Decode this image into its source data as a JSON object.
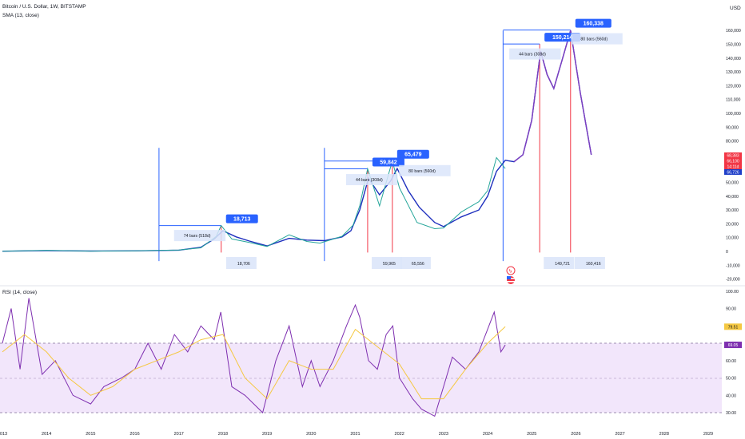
{
  "header": {
    "symbol_line": "Bitcoin / U.S. Dollar, 1W, BITSTAMP",
    "sma_legend": "SMA (13, close)",
    "currency": "USD"
  },
  "rsi_panel": {
    "legend": "RSI (14, close)"
  },
  "price_badges": [
    {
      "label": "68,383",
      "color": "#f23645"
    },
    {
      "label": "66,100",
      "color": "#f23645"
    },
    {
      "label": "14:11d",
      "color": "#f23645"
    },
    {
      "label": "66,726",
      "color": "#1e3ec8"
    }
  ],
  "rsi_badges": [
    {
      "label": "79.51",
      "color": "#f5c842"
    },
    {
      "label": "69.05",
      "color": "#7e2fb0"
    }
  ],
  "annotations": {
    "peak_labels": [
      {
        "label": "18,713",
        "x": 2017.96,
        "y": 18713
      },
      {
        "label": "59,842",
        "x": 2021.28,
        "y": 59842
      },
      {
        "label": "65,479",
        "x": 2021.84,
        "y": 65479
      },
      {
        "label": "150,214",
        "x": 2025.18,
        "y": 150214
      },
      {
        "label": "160,338",
        "x": 2025.88,
        "y": 160338
      }
    ],
    "bar_counts": [
      {
        "label": "74 bars (518d)",
        "x": 2017.0,
        "y": 11500
      },
      {
        "label": "44 bars (308d)",
        "x": 2020.9,
        "y": 52000
      },
      {
        "label": "80 bars (560d)",
        "x": 2022.1,
        "y": 58500
      },
      {
        "label": "44 bars (308d)",
        "x": 2024.6,
        "y": 143000
      },
      {
        "label": "80 bars (560d)",
        "x": 2026.0,
        "y": 154000
      }
    ],
    "price_marks": [
      {
        "label": "18,706",
        "x": 2018.0
      },
      {
        "label": "59,965",
        "x": 2021.3
      },
      {
        "label": "65,556",
        "x": 2021.95
      },
      {
        "label": "149,721",
        "x": 2025.2
      },
      {
        "label": "160,416",
        "x": 2025.9
      }
    ]
  },
  "chart_data": [
    {
      "type": "line",
      "title": "Bitcoin / U.S. Dollar, 1W, BITSTAMP",
      "ylabel": "USD",
      "xlim": [
        2013.0,
        2029.2
      ],
      "ylim": [
        -20000,
        170000
      ],
      "x_ticks": [
        "2013",
        "2014",
        "2015",
        "2016",
        "2017",
        "2018",
        "2019",
        "2020",
        "2021",
        "2022",
        "2023",
        "2024",
        "2025",
        "2026",
        "2027",
        "2028",
        "2029"
      ],
      "y_ticks": [
        "-20,000",
        "-10,000",
        "0",
        "10,000",
        "20,000",
        "30,000",
        "40,000",
        "50,000",
        "60,000",
        "70,000",
        "80,000",
        "90,000",
        "100,000",
        "110,000",
        "120,000",
        "130,000",
        "140,000",
        "150,000",
        "160,000"
      ],
      "grid": false,
      "series": [
        {
          "name": "SMA (13, close)",
          "color": "#1e2fbe",
          "x": [
            2013.0,
            2014.0,
            2015.0,
            2016.0,
            2017.0,
            2017.5,
            2017.8,
            2018.0,
            2018.3,
            2018.6,
            2019.0,
            2019.5,
            2019.9,
            2020.3,
            2020.7,
            2020.9,
            2021.1,
            2021.3,
            2021.55,
            2021.8,
            2021.95,
            2022.2,
            2022.45,
            2022.8,
            2023.0,
            2023.4,
            2023.8,
            2024.0,
            2024.2,
            2024.4,
            2024.6,
            2024.8,
            2025.0,
            2025.2,
            2025.35,
            2025.5,
            2025.7,
            2025.88,
            2026.1,
            2026.35
          ],
          "y": [
            200,
            500,
            300,
            400,
            900,
            3000,
            9000,
            15000,
            10500,
            7500,
            4000,
            9500,
            8200,
            7800,
            10500,
            15000,
            30000,
            53000,
            41000,
            51000,
            60000,
            44000,
            32000,
            21000,
            18000,
            25000,
            30000,
            40000,
            58000,
            66000,
            65000,
            70000,
            95000,
            145000,
            128000,
            118000,
            140000,
            160000,
            115000,
            70000
          ]
        },
        {
          "name": "Price",
          "color": "#26a69a",
          "x": [
            2013.0,
            2014.0,
            2015.0,
            2016.0,
            2017.0,
            2017.5,
            2017.85,
            2017.96,
            2018.2,
            2018.6,
            2019.0,
            2019.5,
            2019.9,
            2020.2,
            2020.7,
            2020.95,
            2021.1,
            2021.28,
            2021.55,
            2021.84,
            2022.0,
            2022.4,
            2022.8,
            2023.0,
            2023.4,
            2023.8,
            2024.0,
            2024.2,
            2024.4
          ],
          "y": [
            100,
            800,
            250,
            450,
            1000,
            2600,
            11000,
            18713,
            9000,
            6500,
            3600,
            12000,
            7200,
            6000,
            11000,
            19000,
            33000,
            59842,
            33000,
            65479,
            46000,
            21000,
            16500,
            17000,
            28500,
            36000,
            44000,
            68000,
            60000
          ]
        }
      ]
    },
    {
      "type": "line",
      "title": "RSI (14, close)",
      "xlim": [
        2013.0,
        2029.2
      ],
      "ylim": [
        25,
        100
      ],
      "y_ticks": [
        "30.00",
        "40.00",
        "50.00",
        "60.00",
        "70.00",
        "80.00",
        "90.00",
        "100.00"
      ],
      "bands": {
        "upper": 70,
        "middle": 50,
        "lower": 30
      },
      "series": [
        {
          "name": "RSI",
          "color": "#7e2fb0",
          "x": [
            2013.0,
            2013.2,
            2013.4,
            2013.6,
            2013.9,
            2014.2,
            2014.6,
            2015.0,
            2015.3,
            2015.7,
            2016.0,
            2016.3,
            2016.6,
            2016.9,
            2017.2,
            2017.5,
            2017.8,
            2017.95,
            2018.2,
            2018.5,
            2018.9,
            2019.2,
            2019.5,
            2019.8,
            2020.0,
            2020.2,
            2020.5,
            2020.8,
            2021.0,
            2021.1,
            2021.3,
            2021.5,
            2021.7,
            2021.85,
            2022.0,
            2022.3,
            2022.5,
            2022.8,
            2023.0,
            2023.2,
            2023.5,
            2023.8,
            2024.0,
            2024.15,
            2024.3,
            2024.4
          ],
          "y": [
            70,
            90,
            55,
            96,
            52,
            60,
            40,
            35,
            45,
            50,
            55,
            70,
            55,
            75,
            65,
            80,
            72,
            88,
            45,
            40,
            30,
            60,
            80,
            45,
            60,
            45,
            60,
            80,
            92,
            85,
            60,
            55,
            75,
            80,
            50,
            38,
            32,
            28,
            45,
            62,
            55,
            65,
            78,
            88,
            65,
            69
          ]
        },
        {
          "name": "RSI MA",
          "color": "#f5c842",
          "x": [
            2013.0,
            2013.5,
            2014.0,
            2014.5,
            2015.0,
            2015.5,
            2016.0,
            2016.5,
            2017.0,
            2017.5,
            2018.0,
            2018.5,
            2019.0,
            2019.5,
            2020.0,
            2020.5,
            2021.0,
            2021.5,
            2022.0,
            2022.5,
            2023.0,
            2023.5,
            2024.0,
            2024.4
          ],
          "y": [
            65,
            75,
            65,
            50,
            40,
            45,
            55,
            60,
            65,
            72,
            75,
            50,
            38,
            60,
            55,
            55,
            78,
            68,
            58,
            38,
            38,
            55,
            70,
            79.51
          ]
        }
      ]
    }
  ]
}
